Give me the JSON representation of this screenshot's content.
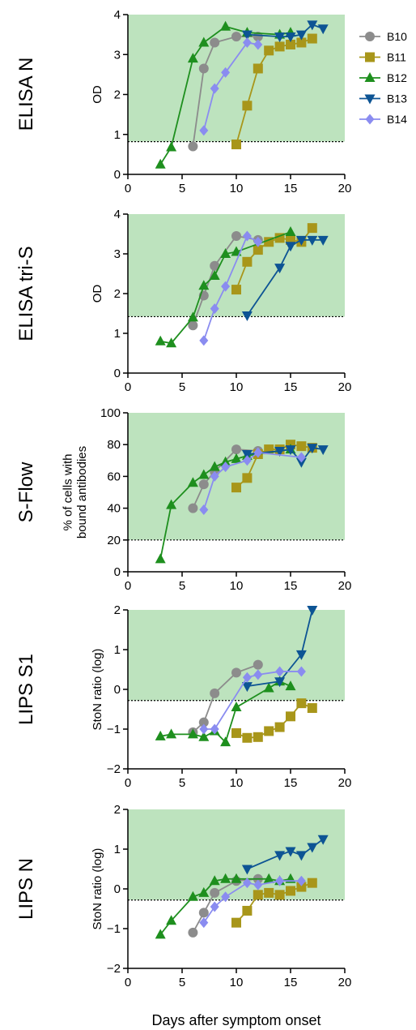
{
  "figure": {
    "xlabel": "Days after symptom onset"
  },
  "legend": {
    "placement": "right",
    "entries": [
      {
        "name": "B10",
        "color": "#8c8c8c",
        "marker": "circle"
      },
      {
        "name": "B11",
        "color": "#a8961a",
        "marker": "square"
      },
      {
        "name": "B12",
        "color": "#1e8f1e",
        "marker": "triangle-up"
      },
      {
        "name": "B13",
        "color": "#0d5494",
        "marker": "triangle-down"
      },
      {
        "name": "B14",
        "color": "#8a8cf0",
        "marker": "diamond"
      }
    ]
  },
  "chart_data": [
    {
      "type": "line",
      "row_label": "ELISA N",
      "ylabel": "OD",
      "xlim": [
        0,
        20
      ],
      "ylim": [
        0,
        4
      ],
      "xticks": [
        0,
        5,
        10,
        15,
        20
      ],
      "yticks": [
        0,
        1,
        2,
        3,
        4
      ],
      "threshold": 0.82,
      "shade_color": "#bde3be",
      "series": [
        {
          "name": "B10",
          "x": [
            6,
            7,
            8,
            10,
            12
          ],
          "y": [
            0.7,
            2.65,
            3.3,
            3.45,
            3.45
          ]
        },
        {
          "name": "B11",
          "x": [
            10,
            11,
            12,
            13,
            14,
            15,
            16,
            17
          ],
          "y": [
            0.75,
            1.72,
            2.65,
            3.1,
            3.2,
            3.25,
            3.3,
            3.4
          ]
        },
        {
          "name": "B12",
          "x": [
            3,
            4,
            6,
            7,
            9,
            11,
            14,
            15
          ],
          "y": [
            0.25,
            0.68,
            2.9,
            3.3,
            3.7,
            3.55,
            3.5,
            3.55
          ]
        },
        {
          "name": "B13",
          "x": [
            11,
            14,
            15,
            16,
            17,
            18
          ],
          "y": [
            3.5,
            3.45,
            3.45,
            3.5,
            3.75,
            3.65
          ]
        },
        {
          "name": "B14",
          "x": [
            7,
            8,
            9,
            11,
            12
          ],
          "y": [
            1.1,
            2.15,
            2.55,
            3.3,
            3.25
          ]
        }
      ]
    },
    {
      "type": "line",
      "row_label": "ELISA tri-S",
      "ylabel": "OD",
      "xlim": [
        0,
        20
      ],
      "ylim": [
        0,
        4
      ],
      "xticks": [
        0,
        5,
        10,
        15,
        20
      ],
      "yticks": [
        0,
        1,
        2,
        3,
        4
      ],
      "threshold": 1.42,
      "shade_color": "#bde3be",
      "series": [
        {
          "name": "B10",
          "x": [
            6,
            7,
            8,
            10,
            12
          ],
          "y": [
            1.2,
            1.95,
            2.7,
            3.45,
            3.35
          ]
        },
        {
          "name": "B11",
          "x": [
            10,
            11,
            12,
            13,
            14,
            15,
            16,
            17
          ],
          "y": [
            2.1,
            2.8,
            3.1,
            3.3,
            3.4,
            3.35,
            3.3,
            3.65
          ]
        },
        {
          "name": "B12",
          "x": [
            3,
            4,
            6,
            7,
            8,
            9,
            10,
            15
          ],
          "y": [
            0.8,
            0.75,
            1.4,
            2.2,
            2.45,
            3.0,
            3.05,
            3.55
          ]
        },
        {
          "name": "B13",
          "x": [
            11,
            14,
            15,
            16,
            17,
            18
          ],
          "y": [
            1.45,
            2.65,
            3.2,
            3.35,
            3.35,
            3.35
          ]
        },
        {
          "name": "B14",
          "x": [
            7,
            8,
            9,
            11,
            12
          ],
          "y": [
            0.82,
            1.62,
            2.18,
            3.45,
            3.3
          ]
        }
      ]
    },
    {
      "type": "line",
      "row_label": "S-Flow",
      "ylabel": "% of cells with bound antibodies",
      "xlim": [
        0,
        20
      ],
      "ylim": [
        0,
        100
      ],
      "xticks": [
        0,
        5,
        10,
        15,
        20
      ],
      "yticks": [
        0,
        20,
        40,
        60,
        80,
        100
      ],
      "threshold": 20,
      "shade_color": "#bde3be",
      "series": [
        {
          "name": "B10",
          "x": [
            6,
            7,
            8,
            10,
            12
          ],
          "y": [
            40,
            55,
            63,
            77,
            76
          ]
        },
        {
          "name": "B11",
          "x": [
            10,
            11,
            12,
            13,
            14,
            15,
            16,
            17
          ],
          "y": [
            53,
            59,
            74,
            77,
            77,
            80,
            79,
            78
          ]
        },
        {
          "name": "B12",
          "x": [
            3,
            4,
            6,
            7,
            8,
            9,
            10,
            11,
            15
          ],
          "y": [
            8,
            42,
            56,
            61,
            66,
            69,
            71,
            73,
            77
          ]
        },
        {
          "name": "B13",
          "x": [
            11,
            14,
            15,
            16,
            17,
            18
          ],
          "y": [
            74,
            76,
            77,
            69,
            78,
            77
          ]
        },
        {
          "name": "B14",
          "x": [
            7,
            8,
            9,
            11,
            12,
            16
          ],
          "y": [
            39,
            60,
            66,
            70,
            75,
            72
          ]
        }
      ]
    },
    {
      "type": "line",
      "row_label": "LIPS S1",
      "ylabel": "StoN ratio (log)",
      "xlim": [
        0,
        20
      ],
      "ylim": [
        -2,
        2
      ],
      "xticks": [
        0,
        5,
        10,
        15,
        20
      ],
      "yticks": [
        -2,
        -1,
        0,
        1,
        2
      ],
      "threshold": -0.28,
      "shade_color": "#bde3be",
      "series": [
        {
          "name": "B10",
          "x": [
            6,
            7,
            8,
            10,
            12
          ],
          "y": [
            -1.08,
            -0.83,
            -0.1,
            0.42,
            0.62
          ]
        },
        {
          "name": "B11",
          "x": [
            10,
            11,
            12,
            13,
            14,
            15,
            16,
            17
          ],
          "y": [
            -1.1,
            -1.22,
            -1.2,
            -1.05,
            -0.95,
            -0.68,
            -0.35,
            -0.47
          ]
        },
        {
          "name": "B12",
          "x": [
            3,
            4,
            6,
            7,
            8,
            9,
            10,
            13,
            14,
            15
          ],
          "y": [
            -1.18,
            -1.13,
            -1.13,
            -1.2,
            -1.05,
            -1.33,
            -0.45,
            0.03,
            0.2,
            0.08
          ]
        },
        {
          "name": "B13",
          "x": [
            11,
            14,
            16,
            17
          ],
          "y": [
            0.08,
            0.2,
            0.88,
            2.0
          ]
        },
        {
          "name": "B14",
          "x": [
            7,
            8,
            11,
            12,
            14,
            16
          ],
          "y": [
            -1.0,
            -1.0,
            0.3,
            0.37,
            0.45,
            0.45
          ]
        }
      ]
    },
    {
      "type": "line",
      "row_label": "LIPS N",
      "ylabel": "StoN ratio (log)",
      "xlim": [
        0,
        20
      ],
      "ylim": [
        -2,
        2
      ],
      "xticks": [
        0,
        5,
        10,
        15,
        20
      ],
      "yticks": [
        -2,
        -1,
        0,
        1,
        2
      ],
      "threshold": -0.28,
      "shade_color": "#bde3be",
      "series": [
        {
          "name": "B10",
          "x": [
            6,
            7,
            8,
            10,
            12
          ],
          "y": [
            -1.1,
            -0.6,
            -0.1,
            0.2,
            0.25
          ]
        },
        {
          "name": "B11",
          "x": [
            10,
            11,
            12,
            13,
            14,
            15,
            16,
            17
          ],
          "y": [
            -0.85,
            -0.55,
            -0.15,
            -0.1,
            -0.15,
            -0.05,
            0.05,
            0.15
          ]
        },
        {
          "name": "B12",
          "x": [
            3,
            4,
            6,
            7,
            8,
            9,
            10,
            13,
            14,
            15
          ],
          "y": [
            -1.15,
            -0.8,
            -0.2,
            -0.1,
            0.2,
            0.25,
            0.25,
            0.25,
            0.2,
            0.25
          ]
        },
        {
          "name": "B13",
          "x": [
            11,
            14,
            15,
            16,
            17,
            18
          ],
          "y": [
            0.5,
            0.85,
            0.95,
            0.85,
            1.05,
            1.25
          ]
        },
        {
          "name": "B14",
          "x": [
            7,
            8,
            9,
            11,
            12,
            14,
            16
          ],
          "y": [
            -0.85,
            -0.45,
            -0.2,
            0.15,
            0.1,
            0.2,
            0.2
          ]
        }
      ]
    }
  ]
}
